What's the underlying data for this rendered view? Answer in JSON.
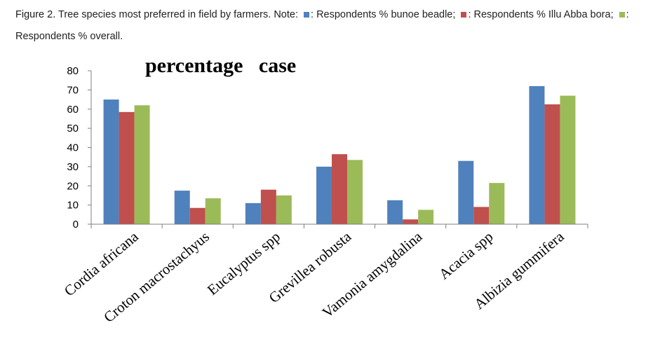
{
  "caption": {
    "figure_label": "Figure 2.",
    "text": " Tree species most preferred in field by farmers. ",
    "note_label": "Note",
    "legend_items": [
      {
        "text": ": Respondents % bunoe beadle;",
        "color": "#4f81bd"
      },
      {
        "text": ": Respondents % Illu Abba bora;",
        "color": "#c0504d"
      },
      {
        "text": ": Respondents % overall.",
        "color": "#9bbb59"
      }
    ]
  },
  "chart_data": {
    "type": "bar",
    "title": "percentage   case",
    "categories": [
      "Cordia africana",
      "Croton macrostachyus",
      "Eucalyptus  spp",
      "Grevillea robusta",
      "Vamonia amygdalina",
      "Acacia spp",
      "Albizia gummifera"
    ],
    "series": [
      {
        "values": [
          65,
          17.5,
          11,
          30,
          12.5,
          33,
          72
        ],
        "color": "#4f81bd"
      },
      {
        "values": [
          58.5,
          8.5,
          18,
          36.5,
          2.5,
          9,
          62.5
        ],
        "color": "#c0504d"
      },
      {
        "values": [
          62,
          13.5,
          15,
          33.5,
          7.5,
          21.5,
          67
        ],
        "color": "#9bbb59"
      }
    ],
    "ylim": [
      0,
      80
    ],
    "yticks": [
      "0",
      "10",
      "20",
      "30",
      "40",
      "50",
      "60",
      "70",
      "80"
    ],
    "grid": false,
    "legend": "caption"
  }
}
